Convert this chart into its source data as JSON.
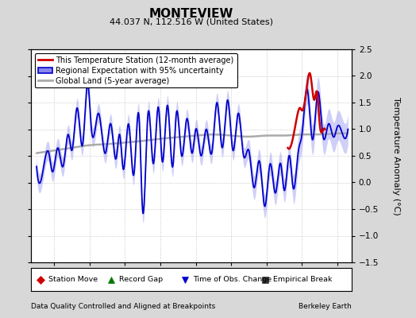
{
  "title": "MONTEVIEW",
  "subtitle": "44.037 N, 112.516 W (United States)",
  "ylabel": "Temperature Anomaly (°C)",
  "xlabel_left": "Data Quality Controlled and Aligned at Breakpoints",
  "xlabel_right": "Berkeley Earth",
  "ylim": [
    -1.5,
    2.5
  ],
  "xlim": [
    1996.7,
    2014.8
  ],
  "xticks": [
    1998,
    2000,
    2002,
    2004,
    2006,
    2008,
    2010,
    2012,
    2014
  ],
  "yticks": [
    -1.5,
    -1.0,
    -0.5,
    0.0,
    0.5,
    1.0,
    1.5,
    2.0,
    2.5
  ],
  "bg_color": "#d8d8d8",
  "plot_bg_color": "#ffffff",
  "grid_color": "#bbbbbb",
  "regional_color": "#0000cc",
  "regional_fill_color": "#8888ee",
  "station_color": "#cc0000",
  "global_color": "#aaaaaa",
  "legend_items": [
    {
      "label": "This Temperature Station (12-month average)",
      "color": "#cc0000"
    },
    {
      "label": "Regional Expectation with 95% uncertainty",
      "color": "#0000cc"
    },
    {
      "label": "Global Land (5-year average)",
      "color": "#aaaaaa"
    }
  ],
  "bottom_legend_items": [
    {
      "label": "Station Move",
      "color": "#cc0000",
      "marker": "D"
    },
    {
      "label": "Record Gap",
      "color": "#007700",
      "marker": "^"
    },
    {
      "label": "Time of Obs. Change",
      "color": "#0000cc",
      "marker": "v"
    },
    {
      "label": "Empirical Break",
      "color": "#333333",
      "marker": "s"
    }
  ],
  "regional_keypoints": [
    [
      1997.0,
      0.3
    ],
    [
      1997.3,
      0.1
    ],
    [
      1997.7,
      0.55
    ],
    [
      1997.9,
      0.2
    ],
    [
      1998.2,
      0.65
    ],
    [
      1998.5,
      0.3
    ],
    [
      1998.8,
      0.9
    ],
    [
      1999.0,
      0.6
    ],
    [
      1999.3,
      1.4
    ],
    [
      1999.6,
      0.7
    ],
    [
      1999.9,
      1.85
    ],
    [
      2000.1,
      1.0
    ],
    [
      2000.5,
      1.3
    ],
    [
      2000.9,
      0.55
    ],
    [
      2001.2,
      1.1
    ],
    [
      2001.5,
      0.45
    ],
    [
      2001.7,
      0.9
    ],
    [
      2001.9,
      0.25
    ],
    [
      2002.2,
      1.1
    ],
    [
      2002.5,
      0.15
    ],
    [
      2002.8,
      1.2
    ],
    [
      2003.0,
      -0.55
    ],
    [
      2003.3,
      1.3
    ],
    [
      2003.6,
      0.35
    ],
    [
      2003.9,
      1.4
    ],
    [
      2004.1,
      0.4
    ],
    [
      2004.4,
      1.45
    ],
    [
      2004.7,
      0.3
    ],
    [
      2004.9,
      1.3
    ],
    [
      2005.2,
      0.5
    ],
    [
      2005.5,
      1.2
    ],
    [
      2005.8,
      0.55
    ],
    [
      2006.0,
      1.0
    ],
    [
      2006.3,
      0.5
    ],
    [
      2006.6,
      1.0
    ],
    [
      2006.9,
      0.55
    ],
    [
      2007.2,
      1.5
    ],
    [
      2007.5,
      0.65
    ],
    [
      2007.8,
      1.55
    ],
    [
      2008.1,
      0.6
    ],
    [
      2008.4,
      1.3
    ],
    [
      2008.7,
      0.5
    ],
    [
      2009.0,
      0.6
    ],
    [
      2009.3,
      -0.1
    ],
    [
      2009.6,
      0.4
    ],
    [
      2009.9,
      -0.45
    ],
    [
      2010.2,
      0.35
    ],
    [
      2010.5,
      -0.2
    ],
    [
      2010.8,
      0.35
    ],
    [
      2011.0,
      -0.15
    ],
    [
      2011.3,
      0.5
    ],
    [
      2011.5,
      -0.1
    ],
    [
      2011.8,
      0.6
    ],
    [
      2012.0,
      0.9
    ],
    [
      2012.3,
      1.75
    ],
    [
      2012.6,
      0.8
    ],
    [
      2012.9,
      1.7
    ],
    [
      2013.2,
      0.85
    ],
    [
      2013.5,
      1.1
    ],
    [
      2013.8,
      0.85
    ],
    [
      2014.0,
      1.05
    ],
    [
      2014.3,
      0.9
    ],
    [
      2014.6,
      1.0
    ]
  ],
  "station_keypoints": [
    [
      2011.2,
      0.65
    ],
    [
      2011.5,
      0.85
    ],
    [
      2011.7,
      1.2
    ],
    [
      2011.9,
      1.4
    ],
    [
      2012.0,
      1.35
    ],
    [
      2012.15,
      1.5
    ],
    [
      2012.3,
      1.85
    ],
    [
      2012.45,
      2.05
    ],
    [
      2012.55,
      1.85
    ],
    [
      2012.7,
      1.55
    ],
    [
      2012.85,
      1.7
    ],
    [
      2013.0,
      1.1
    ],
    [
      2013.15,
      0.95
    ],
    [
      2013.3,
      1.0
    ]
  ],
  "global_keypoints": [
    [
      1997.0,
      0.55
    ],
    [
      1998.0,
      0.6
    ],
    [
      1999.0,
      0.65
    ],
    [
      2000.0,
      0.7
    ],
    [
      2001.0,
      0.72
    ],
    [
      2002.0,
      0.75
    ],
    [
      2003.0,
      0.78
    ],
    [
      2004.0,
      0.82
    ],
    [
      2005.0,
      0.85
    ],
    [
      2006.0,
      0.88
    ],
    [
      2007.0,
      0.9
    ],
    [
      2008.0,
      0.88
    ],
    [
      2009.0,
      0.86
    ],
    [
      2010.0,
      0.88
    ],
    [
      2011.0,
      0.88
    ],
    [
      2012.0,
      0.9
    ],
    [
      2013.0,
      0.9
    ],
    [
      2014.0,
      0.92
    ],
    [
      2014.6,
      0.92
    ]
  ]
}
